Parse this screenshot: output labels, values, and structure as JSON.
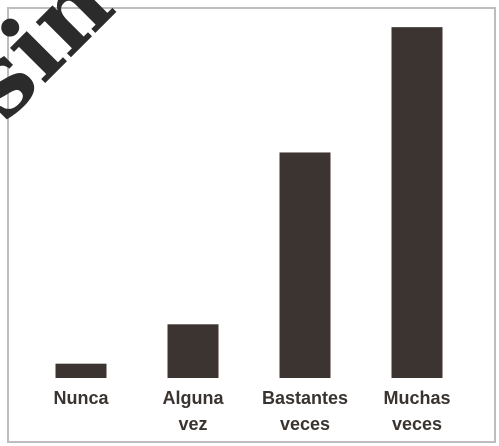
{
  "watermark_text": "sin",
  "colors": {
    "bar": "#3b3431",
    "frame": "#bdbdbd",
    "tick_text": "#3a3431",
    "background": "#ffffff"
  },
  "chart_data": {
    "type": "bar",
    "title": "",
    "xlabel": "",
    "ylabel": "",
    "categories": [
      "Nunca",
      "Alguna vez",
      "Bastantes veces",
      "Muchas veces"
    ],
    "category_lines": [
      [
        "Nunca"
      ],
      [
        "Alguna",
        "vez"
      ],
      [
        "Bastantes",
        "veces"
      ],
      [
        "Muchas",
        "veces"
      ]
    ],
    "values": [
      4,
      15,
      63,
      98
    ],
    "ylim": [
      0,
      100
    ],
    "grid": false,
    "legend": "none"
  }
}
